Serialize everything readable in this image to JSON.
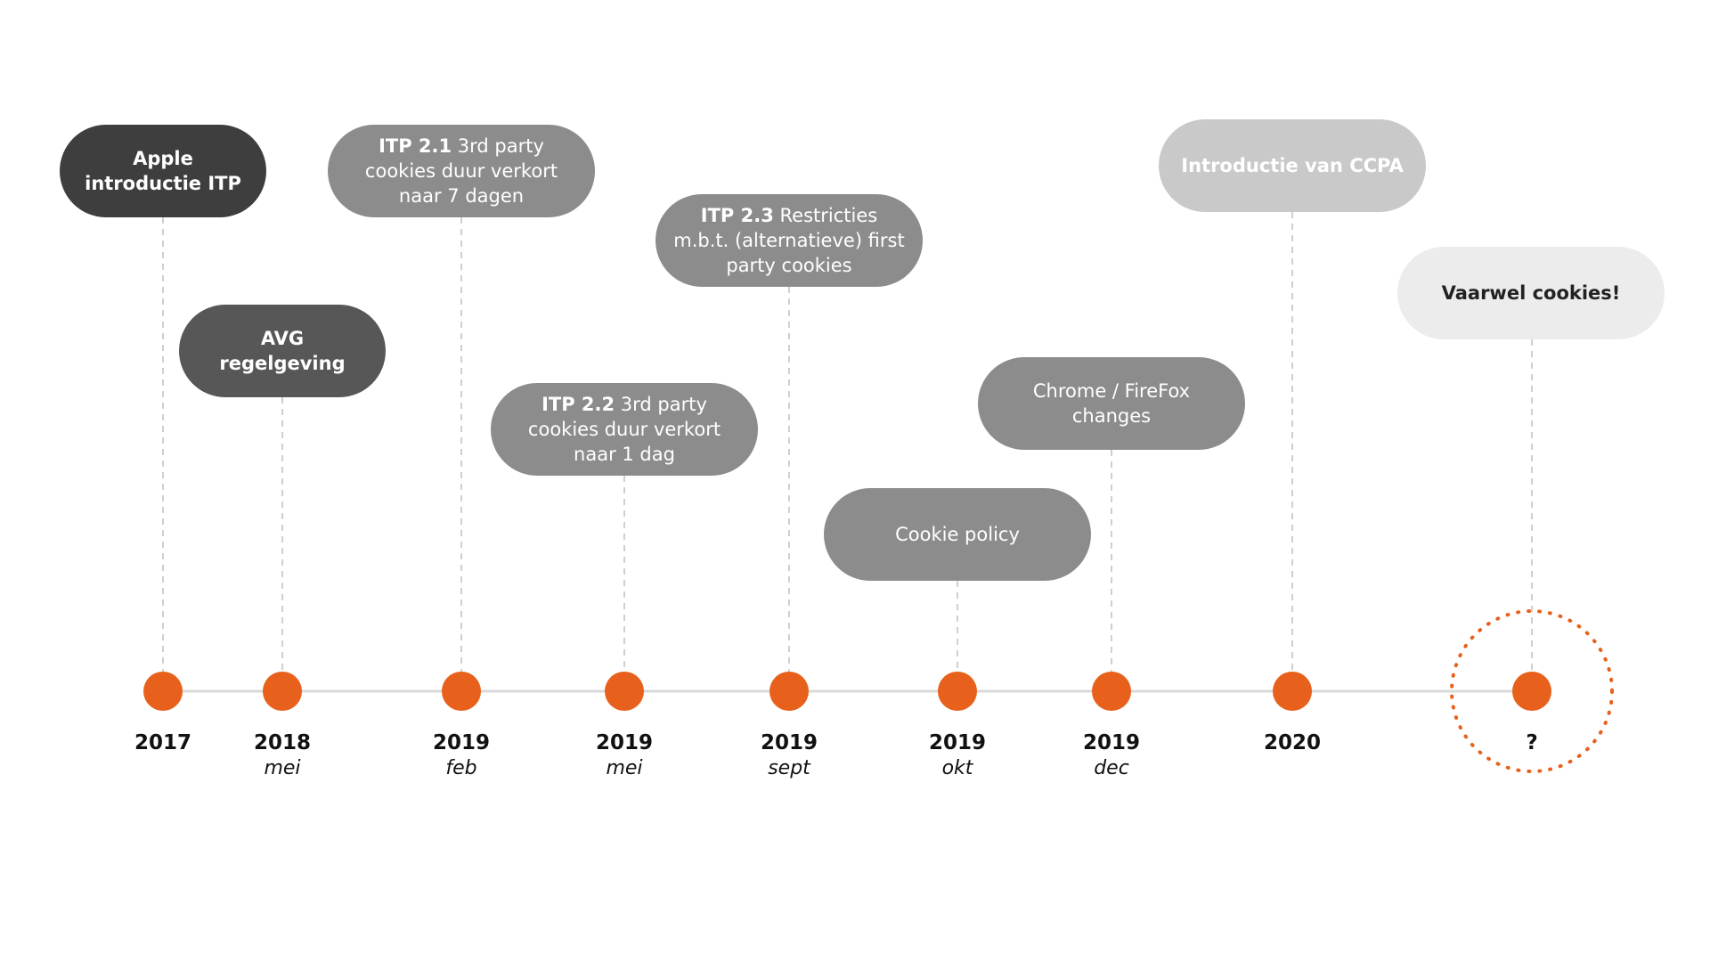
{
  "colors": {
    "accent": "#e8611c",
    "axis": "#d9d9d9",
    "connector": "#cfcfcf"
  },
  "events": [
    {
      "id": "e1",
      "bold": "Apple introductie ITP",
      "text": "",
      "style": "black",
      "year": "2017",
      "month": ""
    },
    {
      "id": "e2",
      "bold": "AVG regelgeving",
      "text": "",
      "style": "dark",
      "year": "2018",
      "month": "mei"
    },
    {
      "id": "e3",
      "bold": "ITP 2.1",
      "text": " 3rd party cookies duur verkort naar 7 dagen",
      "style": "mid",
      "year": "2019",
      "month": "feb"
    },
    {
      "id": "e4",
      "bold": "ITP 2.2",
      "text": " 3rd party cookies duur verkort naar 1 dag",
      "style": "mid",
      "year": "2019",
      "month": "mei"
    },
    {
      "id": "e5",
      "bold": "ITP 2.3",
      "text": " Restricties m.b.t. (alternatieve) first party cookies",
      "style": "mid",
      "year": "2019",
      "month": "sept"
    },
    {
      "id": "e6",
      "bold": "",
      "text": "Cookie policy",
      "style": "mid",
      "year": "2019",
      "month": "okt"
    },
    {
      "id": "e7",
      "bold": "",
      "text": "Chrome / FireFox changes",
      "style": "mid",
      "year": "2019",
      "month": "dec"
    },
    {
      "id": "e8",
      "bold": "Introductie van CCPA",
      "text": "",
      "style": "light",
      "year": "2020",
      "month": ""
    },
    {
      "id": "e9",
      "bold": "Vaarwel cookies!",
      "text": "",
      "style": "faint",
      "year": "?",
      "month": ""
    }
  ]
}
